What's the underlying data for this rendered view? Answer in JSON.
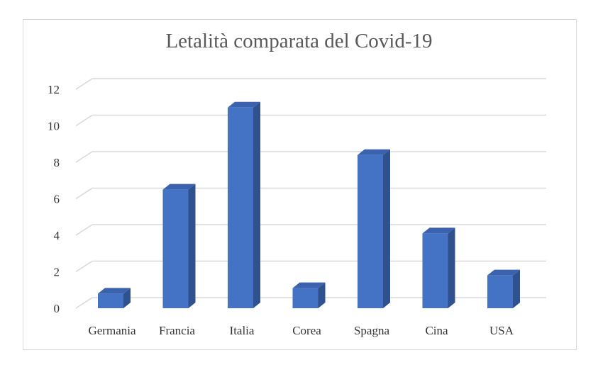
{
  "chart_data": {
    "type": "bar",
    "title": "Letalità comparata del Covid-19",
    "categories": [
      "Germania",
      "Francia",
      "Italia",
      "Corea",
      "Spagna",
      "Cina",
      "USA"
    ],
    "series": [
      {
        "values": [
          0.8,
          6.5,
          11.0,
          1.1,
          8.4,
          4.1,
          1.8
        ]
      }
    ],
    "ylim": [
      0,
      12
    ],
    "yticks": [
      0,
      2,
      4,
      6,
      8,
      10,
      12
    ],
    "xlabel": "",
    "ylabel": "",
    "grid": true,
    "style": "3d-column",
    "colors": {
      "front": "#4472C4",
      "side": "#2F528F",
      "top": "#3A62AE",
      "grid": "#d9d9d9"
    }
  }
}
